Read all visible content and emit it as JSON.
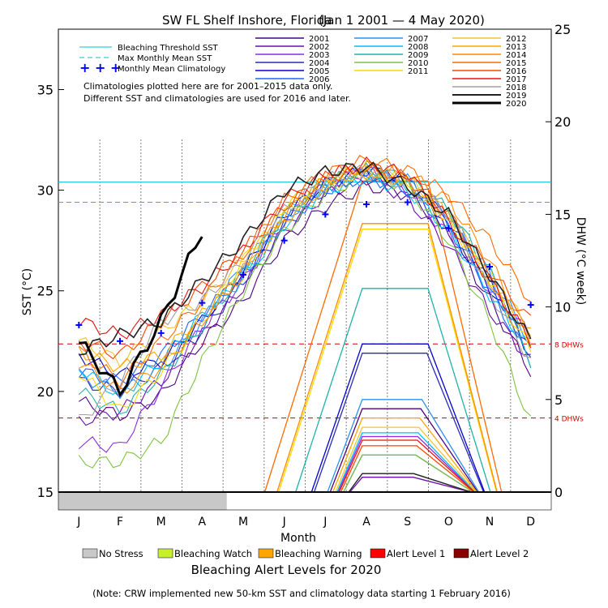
{
  "chart_data": {
    "type": "line",
    "title": "SW FL Shelf Inshore, Florida",
    "date_range": "(Jan 1 2001 — 4 May 2020)",
    "xlabel": "Month",
    "ylabel_left": "SST (°C)",
    "ylabel_right": "DHW (°C week)",
    "months": [
      "J",
      "F",
      "M",
      "A",
      "M",
      "J",
      "J",
      "A",
      "S",
      "O",
      "N",
      "D"
    ],
    "y_left": {
      "range": [
        15,
        38
      ],
      "ticks": [
        15,
        20,
        25,
        30,
        35
      ]
    },
    "y_right": {
      "range": [
        0,
        25
      ],
      "ticks": [
        0,
        5,
        10,
        15,
        20,
        25
      ]
    },
    "bleaching_threshold_sst": 30.4,
    "max_monthly_mean_sst": 29.4,
    "dhw_reference_lines": [
      {
        "value": 4,
        "label": "4 DHWs"
      },
      {
        "value": 8,
        "label": "8 DHWs"
      }
    ],
    "monthly_mean_climatology": [
      23.3,
      22.5,
      22.9,
      24.4,
      25.8,
      27.5,
      28.8,
      29.3,
      29.4,
      28.1,
      26.2,
      24.3
    ],
    "legend_lines": {
      "threshold": "Bleaching Threshold SST",
      "mmm": "Max Monthly Mean SST",
      "climatology": "Monthly Mean Climatology"
    },
    "notes": [
      "Climatologies plotted here are for 2001–2015 data only.",
      "Different SST and climatologies are used for 2016 and later."
    ],
    "series": [
      {
        "name": "2001",
        "color": "#4b0082",
        "sst": [
          19.5,
          18.8,
          19.8,
          22.5,
          24.5,
          27.5,
          29.2,
          30.2,
          29.8,
          28.0,
          24.5,
          21.0
        ],
        "dhw_peak": 4.5
      },
      {
        "name": "2002",
        "color": "#6a0dad",
        "sst": [
          18.5,
          19.0,
          20.5,
          22.8,
          25.2,
          28.0,
          29.8,
          30.6,
          29.6,
          27.2,
          24.0,
          21.5
        ],
        "dhw_peak": 0.8
      },
      {
        "name": "2003",
        "color": "#8a2be2",
        "sst": [
          17.5,
          17.2,
          20.2,
          23.2,
          25.5,
          28.5,
          30.2,
          31.0,
          30.0,
          27.8,
          25.0,
          22.8
        ],
        "dhw_peak": 3.0
      },
      {
        "name": "2004",
        "color": "#2b2bb5",
        "sst": [
          20.5,
          20.0,
          21.2,
          23.0,
          25.5,
          28.2,
          30.0,
          30.9,
          30.4,
          28.5,
          25.5,
          21.8
        ],
        "dhw_peak": 7.5
      },
      {
        "name": "2005",
        "color": "#0000cd",
        "sst": [
          21.8,
          20.8,
          21.5,
          23.5,
          26.0,
          28.8,
          30.3,
          31.0,
          30.5,
          28.0,
          25.2,
          22.0
        ],
        "dhw_peak": 8.0
      },
      {
        "name": "2006",
        "color": "#1e64ff",
        "sst": [
          21.0,
          20.5,
          21.8,
          23.8,
          25.8,
          28.4,
          30.0,
          30.7,
          30.0,
          28.2,
          25.0,
          21.5
        ],
        "dhw_peak": 2.0
      },
      {
        "name": "2007",
        "color": "#2f8ff0",
        "sst": [
          20.8,
          20.0,
          21.0,
          23.5,
          26.2,
          28.6,
          30.2,
          30.8,
          30.5,
          28.8,
          25.8,
          22.5
        ],
        "dhw_peak": 5.0
      },
      {
        "name": "2008",
        "color": "#00bfff",
        "sst": [
          21.2,
          19.8,
          21.5,
          23.8,
          25.6,
          28.3,
          30.0,
          30.6,
          30.0,
          28.0,
          24.8,
          22.0
        ],
        "dhw_peak": 3.2
      },
      {
        "name": "2009",
        "color": "#20b2aa",
        "sst": [
          20.0,
          19.0,
          20.8,
          23.2,
          26.0,
          28.8,
          30.4,
          31.0,
          30.6,
          29.0,
          26.0,
          21.5
        ],
        "dhw_peak": 11.0
      },
      {
        "name": "2010",
        "color": "#7fc242",
        "sst": [
          16.5,
          16.5,
          17.5,
          21.5,
          25.0,
          28.0,
          29.8,
          30.8,
          30.2,
          27.5,
          23.5,
          18.5
        ],
        "dhw_peak": 2.0
      },
      {
        "name": "2011",
        "color": "#ffd700",
        "sst": [
          21.0,
          19.0,
          21.0,
          23.5,
          26.5,
          29.2,
          30.5,
          31.0,
          30.5,
          28.5,
          25.5,
          22.0
        ],
        "dhw_peak": 14.2
      },
      {
        "name": "2012",
        "color": "#f4c430",
        "sst": [
          22.5,
          21.5,
          23.0,
          24.5,
          26.5,
          28.8,
          30.3,
          31.0,
          30.5,
          28.8,
          25.8,
          23.0
        ],
        "dhw_peak": 3.5
      },
      {
        "name": "2013",
        "color": "#ffa500",
        "sst": [
          22.0,
          21.2,
          21.8,
          23.8,
          25.8,
          28.5,
          30.2,
          30.9,
          30.4,
          28.6,
          25.5,
          22.8
        ],
        "dhw_peak": 4.0
      },
      {
        "name": "2014",
        "color": "#ff8c00",
        "sst": [
          21.5,
          20.0,
          21.2,
          23.5,
          26.0,
          28.8,
          30.5,
          31.2,
          30.8,
          29.5,
          26.5,
          22.5
        ],
        "dhw_peak": 14.5
      },
      {
        "name": "2015",
        "color": "#ff6a00",
        "sst": [
          22.0,
          20.5,
          22.5,
          24.5,
          26.8,
          29.5,
          30.8,
          31.5,
          31.0,
          29.8,
          27.5,
          24.5
        ],
        "dhw_peak": 16.8
      },
      {
        "name": "2016",
        "color": "#ff4500",
        "sst": [
          22.5,
          21.8,
          23.5,
          25.2,
          27.0,
          29.2,
          30.6,
          31.2,
          30.6,
          28.8,
          26.0,
          23.5
        ],
        "dhw_peak": 2.5
      },
      {
        "name": "2017",
        "color": "#e81010",
        "sst": [
          23.5,
          22.8,
          23.8,
          25.2,
          27.0,
          29.5,
          30.8,
          31.3,
          30.8,
          28.5,
          25.5,
          22.5
        ],
        "dhw_peak": 2.8
      },
      {
        "name": "2018",
        "color": "#a0a0a0",
        "sst": [
          18.5,
          20.5,
          23.5,
          24.5,
          26.5,
          29.0,
          30.5,
          31.0,
          30.2,
          28.8,
          25.0,
          21.5
        ],
        "dhw_peak": 1.0
      },
      {
        "name": "2019",
        "color": "#222222",
        "sst": [
          22.0,
          22.8,
          23.5,
          25.5,
          27.5,
          30.0,
          30.9,
          31.2,
          30.2,
          28.8,
          25.8,
          22.5
        ],
        "dhw_peak": 1.0
      },
      {
        "name": "2020",
        "color": "#000000",
        "sst": [
          22.5,
          20.0,
          23.5,
          28.0
        ],
        "dhw_peak": 0
      }
    ],
    "alert_levels": {
      "title": "Bleaching Alert Levels for 2020",
      "items": [
        {
          "label": "No Stress",
          "color": "#c8c8c8"
        },
        {
          "label": "Bleaching Watch",
          "color": "#c6f02a"
        },
        {
          "label": "Bleaching Warning",
          "color": "#ffa500"
        },
        {
          "label": "Alert Level 1",
          "color": "#ff0000"
        },
        {
          "label": "Alert Level 2",
          "color": "#8b0000"
        }
      ],
      "bar_2020": [
        {
          "level": "No Stress",
          "from_month": 0,
          "to_month": 4.1
        }
      ]
    },
    "footnote": "(Note: CRW implemented new 50-km SST and climatology data starting 1 February 2016)"
  }
}
